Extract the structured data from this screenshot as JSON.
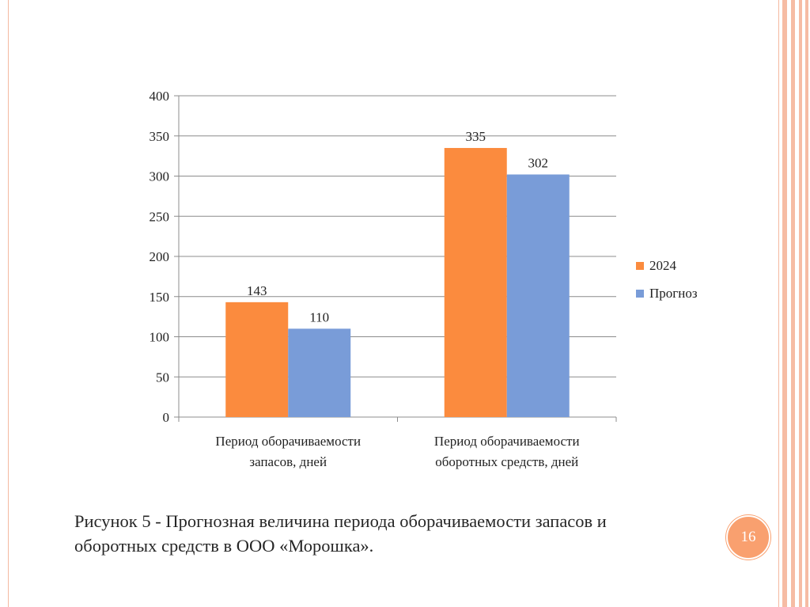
{
  "chart_data": {
    "type": "bar",
    "categories": [
      [
        "Период оборачиваемости",
        "запасов, дней"
      ],
      [
        "Период оборачиваемости",
        "оборотных средств, дней"
      ]
    ],
    "series": [
      {
        "name": "2024",
        "values": [
          143,
          335
        ],
        "color": "#fb8b3e"
      },
      {
        "name": "Прогноз",
        "values": [
          110,
          302
        ],
        "color": "#799cd8"
      }
    ],
    "ylim": [
      0,
      400
    ],
    "yticks": [
      0,
      50,
      100,
      150,
      200,
      250,
      300,
      350,
      400
    ],
    "grid": true,
    "legend_position": "right",
    "data_labels": true,
    "xlabel": "",
    "ylabel": ""
  },
  "caption": {
    "line1": "Рисунок 5 - Прогнозная величина периода оборачиваемости запасов и",
    "line2": "оборотных средств в ООО «Морошка»."
  },
  "page_number": "16"
}
